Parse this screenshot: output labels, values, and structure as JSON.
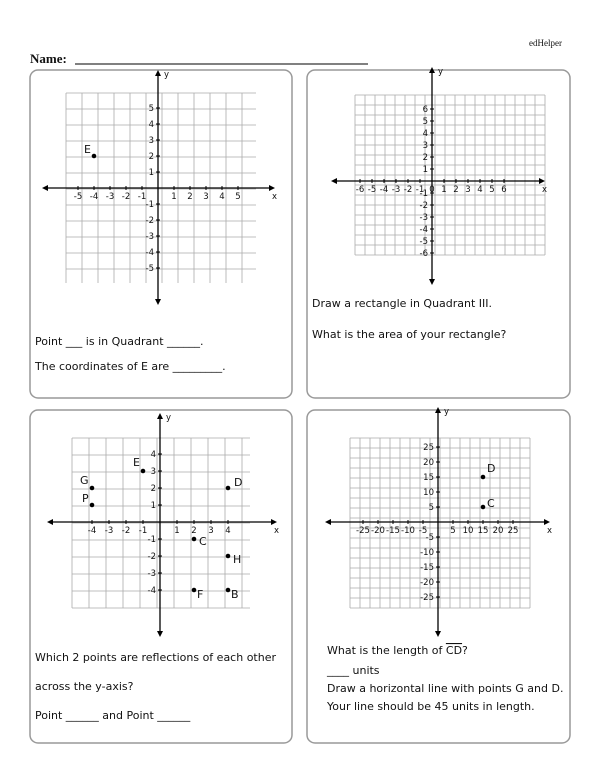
{
  "header": {
    "brand": "edHelper",
    "name_label": "Name:"
  },
  "panels": [
    {
      "grid": {
        "x_label": "x",
        "y_label": "y",
        "xticks": [
          -5,
          -4,
          -3,
          -2,
          -1,
          1,
          2,
          3,
          4,
          5
        ],
        "yticks": [
          -5,
          -4,
          -3,
          -2,
          -1,
          1,
          2,
          3,
          4,
          5
        ],
        "points": [
          {
            "label": "E",
            "x": -4,
            "y": 2
          }
        ]
      },
      "lines": [
        "Point ___ is in Quadrant ______.",
        "The  coordinates of E are _________."
      ]
    },
    {
      "grid": {
        "x_label": "x",
        "y_label": "y",
        "xticks": [
          -6,
          -5,
          -4,
          -3,
          -2,
          -1,
          0,
          1,
          2,
          3,
          4,
          5,
          6
        ],
        "yticks": [
          -6,
          -5,
          -4,
          -3,
          -2,
          -1,
          1,
          2,
          3,
          4,
          5,
          6
        ],
        "points": []
      },
      "lines": [
        "Draw a rectangle in Quadrant III.",
        "What is the area of your rectangle?"
      ]
    },
    {
      "grid": {
        "x_label": "x",
        "y_label": "y",
        "xticks": [
          -4,
          -3,
          -2,
          -1,
          1,
          2,
          3,
          4
        ],
        "yticks": [
          -4,
          -3,
          -2,
          -1,
          1,
          2,
          3,
          4
        ],
        "points": [
          {
            "label": "E",
            "x": -1,
            "y": 3
          },
          {
            "label": "D",
            "x": 4,
            "y": 2
          },
          {
            "label": "G",
            "x": -4,
            "y": 2
          },
          {
            "label": "P",
            "x": -4,
            "y": 1
          },
          {
            "label": "C",
            "x": 2,
            "y": -1
          },
          {
            "label": "H",
            "x": 4,
            "y": -2
          },
          {
            "label": "F",
            "x": 2,
            "y": -4
          },
          {
            "label": "B",
            "x": 4,
            "y": -4
          }
        ]
      },
      "lines": [
        "Which 2 points are reflections of each other",
        "across the y-axis?",
        "Point  ______  and  Point  ______"
      ]
    },
    {
      "grid": {
        "x_label": "x",
        "y_label": "y",
        "xticks": [
          -25,
          -20,
          -15,
          -10,
          -5,
          5,
          10,
          15,
          20,
          25
        ],
        "yticks": [
          -25,
          -20,
          -15,
          -10,
          -5,
          5,
          10,
          15,
          20,
          25
        ],
        "points": [
          {
            "label": "D",
            "x": 15,
            "y": 15
          },
          {
            "label": "C",
            "x": 15,
            "y": 5
          }
        ]
      },
      "question": {
        "before": "What is the length of ",
        "segment": "CD",
        "after": "?"
      },
      "lines": [
        "____ units",
        "Draw a horizontal line with points G and D.",
        "Your line should be 45 units in length."
      ]
    }
  ]
}
